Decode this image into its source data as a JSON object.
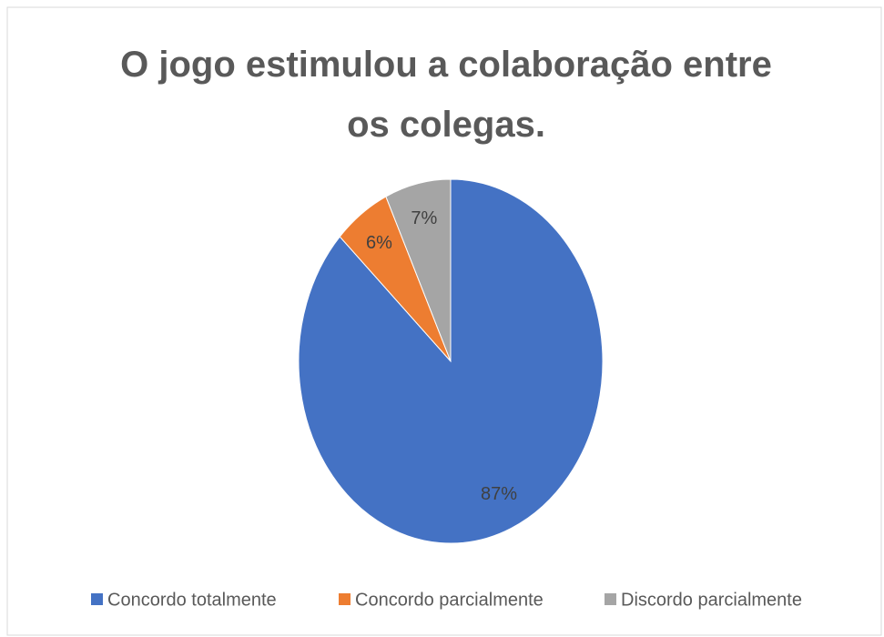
{
  "chart_data": {
    "type": "pie",
    "title": "O jogo estimulou a colaboração entre os colegas.",
    "categories": [
      "Concordo totalmente",
      "Concordo parcialmente",
      "Discordo parcialmente"
    ],
    "values": [
      87,
      6,
      7
    ],
    "value_labels": [
      "87%",
      "6%",
      "7%"
    ],
    "colors": [
      "#4472c4",
      "#ed7d31",
      "#a5a5a5"
    ],
    "legend": "bottom"
  }
}
